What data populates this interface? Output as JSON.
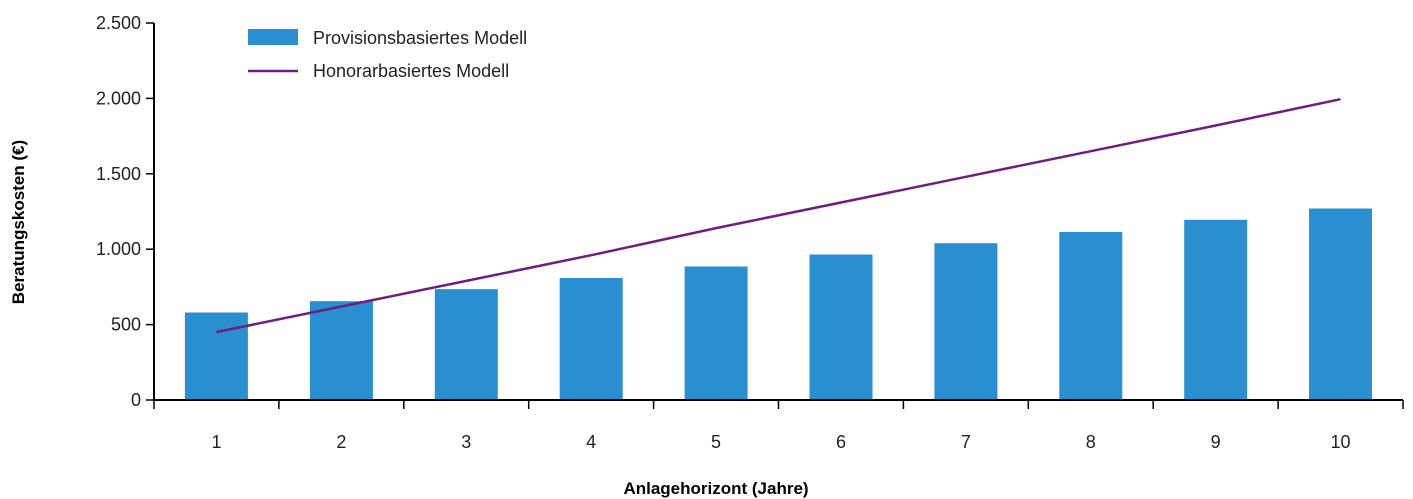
{
  "chart_data": {
    "type": "bar",
    "categories": [
      "1",
      "2",
      "3",
      "4",
      "5",
      "6",
      "7",
      "8",
      "9",
      "10"
    ],
    "series": [
      {
        "name": "Provisionsbasiertes Modell",
        "type": "bar",
        "color": "#2a8fd0",
        "values": [
          580,
          655,
          735,
          810,
          885,
          965,
          1040,
          1115,
          1195,
          1270
        ]
      },
      {
        "name": "Honorarbasiertes Modell",
        "type": "line",
        "color": "#6d1f7d",
        "values": [
          450,
          620,
          790,
          960,
          1140,
          1310,
          1480,
          1650,
          1820,
          1995
        ]
      }
    ],
    "yticks": [
      0,
      500,
      1000,
      1500,
      2000,
      2500
    ],
    "ytick_labels": [
      "0",
      "500",
      "1.000",
      "1.500",
      "2.000",
      "2.500"
    ],
    "ylim": [
      0,
      2500
    ],
    "xlabel": "Anlagehorizont (Jahre)",
    "ylabel": "Beratungskosten (€)",
    "grid": false,
    "legend_position": "top-left"
  }
}
